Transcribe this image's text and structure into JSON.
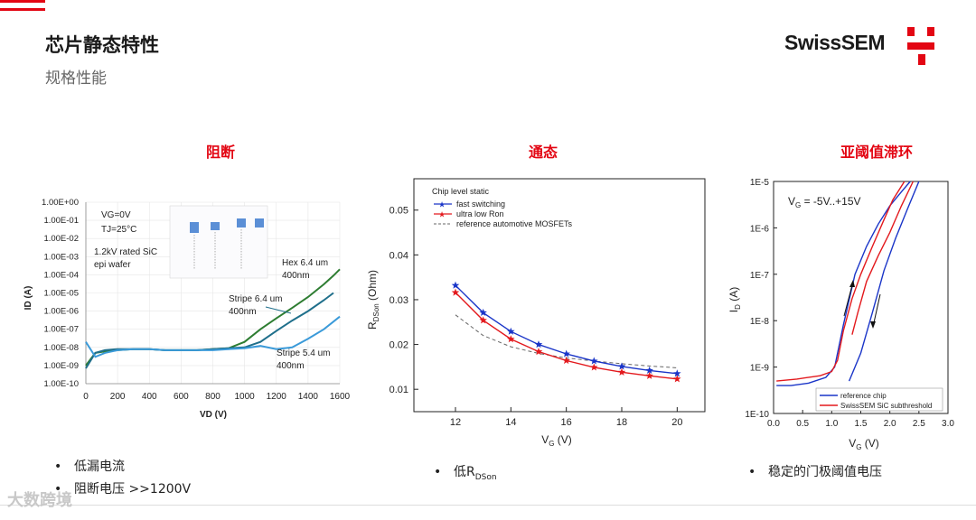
{
  "header": {
    "title": "芯片静态特性",
    "subtitle": "规格性能",
    "brand": "SwissSEM",
    "brand_color": "#e30613"
  },
  "sections": {
    "left": "阻断",
    "mid": "通态",
    "right": "亚阈值滞环"
  },
  "bullets": {
    "left_1": "低漏电流",
    "left_2": "阻断电压 >>1200V",
    "mid_prefix": "低R",
    "mid_sub": "DSon",
    "right_1": "稳定的门极阈值电压"
  },
  "watermark": "大数跨境",
  "chart_data": [
    {
      "type": "line",
      "title": "阻断",
      "xlabel": "VD (V)",
      "ylabel": "ID (A)",
      "xlim": [
        0,
        1600
      ],
      "x_ticks": [
        "0",
        "200",
        "400",
        "600",
        "800",
        "1000",
        "1200",
        "1400",
        "1600"
      ],
      "y_scale": "log",
      "y_ticks": [
        "1.00E-10",
        "1.00E-09",
        "1.00E-08",
        "1.00E-07",
        "1.00E-06",
        "1.00E-05",
        "1.00E-04",
        "1.00E-03",
        "1.00E-02",
        "1.00E-01",
        "1.00E+00"
      ],
      "annotations": {
        "cond_vg": "VG=0V",
        "cond_tj": "TJ=25°C",
        "rating_1": "1.2kV rated SiC",
        "rating_2": "epi wafer",
        "hex_1": "Hex 6.4 um",
        "hex_2": "400nm",
        "stripe64_1": "Stripe 6.4 um",
        "stripe64_2": "400nm",
        "stripe54_1": "Stripe 5.4 um",
        "stripe54_2": "400nm"
      },
      "series": [
        {
          "name": "Hex 6.4 um 400nm",
          "color": "#2e7d32",
          "x": [
            0,
            60,
            120,
            200,
            300,
            400,
            500,
            600,
            700,
            800,
            900,
            1000,
            1100,
            1200,
            1300,
            1400,
            1500,
            1560,
            1600
          ],
          "y": [
            1e-09,
            5e-09,
            6e-09,
            7e-09,
            8e-09,
            8e-09,
            7e-09,
            7e-09,
            7e-09,
            8e-09,
            9e-09,
            2e-08,
            1e-07,
            4e-07,
            1.5e-06,
            6e-06,
            3e-05,
            9e-05,
            0.0002
          ]
        },
        {
          "name": "Stripe 6.4 um 400nm",
          "color": "#1f6f8b",
          "x": [
            0,
            60,
            120,
            200,
            300,
            400,
            500,
            600,
            700,
            800,
            900,
            1000,
            1100,
            1200,
            1300,
            1400,
            1500,
            1560
          ],
          "y": [
            7e-10,
            5e-09,
            7e-09,
            8e-09,
            8e-09,
            8e-09,
            7e-09,
            7e-09,
            7e-09,
            8e-09,
            9e-09,
            1e-08,
            2e-08,
            8e-08,
            3e-07,
            1e-06,
            4e-06,
            1e-05
          ]
        },
        {
          "name": "Stripe 5.4 um 400nm",
          "color": "#3a9ad9",
          "x": [
            0,
            60,
            120,
            200,
            300,
            400,
            500,
            600,
            700,
            800,
            900,
            1000,
            1100,
            1200,
            1300,
            1400,
            1500,
            1600
          ],
          "y": [
            2e-08,
            3e-09,
            5e-09,
            7e-09,
            8e-09,
            8e-09,
            7e-09,
            7e-09,
            7e-09,
            7e-09,
            8e-09,
            9e-09,
            1.2e-08,
            8e-09,
            1e-08,
            3e-08,
            1e-07,
            5e-07
          ]
        }
      ]
    },
    {
      "type": "line",
      "title": "通态",
      "xlabel": "VG (V)",
      "ylabel": "RDSon (Ohm)",
      "xlim": [
        10.5,
        21
      ],
      "ylim": [
        0.005,
        0.057
      ],
      "x_ticks": [
        12,
        14,
        16,
        18,
        20
      ],
      "y_ticks": [
        0.01,
        0.02,
        0.03,
        0.04,
        0.05
      ],
      "legend_title": "Chip level static",
      "series": [
        {
          "name": "fast switching",
          "color": "#1a35c8",
          "marker": "star",
          "x": [
            12,
            13,
            14,
            15,
            16,
            17,
            18,
            19,
            20
          ],
          "y": [
            0.0332,
            0.0271,
            0.0229,
            0.02,
            0.0179,
            0.0163,
            0.0151,
            0.0142,
            0.0135
          ]
        },
        {
          "name": "ultra low Ron",
          "color": "#e3191d",
          "marker": "star",
          "x": [
            12,
            13,
            14,
            15,
            16,
            17,
            18,
            19,
            20
          ],
          "y": [
            0.0316,
            0.0254,
            0.0212,
            0.0184,
            0.0164,
            0.0149,
            0.0138,
            0.013,
            0.0123
          ]
        },
        {
          "name": "reference automotive MOSFETs",
          "color": "#666666",
          "dash": true,
          "x": [
            12,
            13,
            14,
            15,
            16,
            17,
            18,
            19,
            20
          ],
          "y": [
            0.0266,
            0.022,
            0.0195,
            0.018,
            0.017,
            0.0163,
            0.0157,
            0.0152,
            0.0148
          ]
        }
      ]
    },
    {
      "type": "line",
      "title": "亚阈值滞环",
      "xlabel": "VG (V)",
      "ylabel": "ID (A)",
      "xlim": [
        0,
        3
      ],
      "x_ticks": [
        "0.0",
        "0.5",
        "1.0",
        "1.5",
        "2.0",
        "2.5",
        "3.0"
      ],
      "y_scale": "log",
      "y_ticks": [
        "1E-10",
        "1E-9",
        "1E-8",
        "1E-7",
        "1E-6",
        "1E-5"
      ],
      "annotation": "VG = -5V..+15V",
      "series": [
        {
          "name": "reference chip",
          "color": "#1a35c8",
          "up_x": [
            0.05,
            0.3,
            0.6,
            0.9,
            1.05,
            1.2,
            1.4,
            1.6,
            1.8,
            2.0,
            2.2,
            2.35
          ],
          "up_y": [
            4e-10,
            4e-10,
            4.5e-10,
            6e-10,
            1e-09,
            8e-09,
            1e-07,
            4e-07,
            1.2e-06,
            3e-06,
            6e-06,
            1e-05
          ],
          "down_x": [
            2.5,
            2.3,
            2.1,
            1.9,
            1.7,
            1.5,
            1.3
          ],
          "down_y": [
            1e-05,
            2.5e-06,
            6e-07,
            1.2e-07,
            1.5e-08,
            2e-09,
            5e-10
          ]
        },
        {
          "name": "SwissSEM SiC subthreshold",
          "color": "#e3191d",
          "up_x": [
            0.05,
            0.4,
            0.8,
            1.0,
            1.1,
            1.2,
            1.35,
            1.5,
            1.7,
            1.9,
            2.05,
            2.25
          ],
          "up_y": [
            5e-10,
            5.5e-10,
            6.5e-10,
            8e-10,
            1.4e-09,
            6e-09,
            3e-08,
            1e-07,
            4e-07,
            1.5e-06,
            4e-06,
            1e-05
          ],
          "down_x": [
            2.4,
            2.2,
            2.0,
            1.8,
            1.6,
            1.45,
            1.35
          ],
          "down_y": [
            1e-05,
            3e-06,
            8e-07,
            2.5e-07,
            7e-08,
            1.5e-08,
            5e-09
          ]
        }
      ]
    }
  ]
}
